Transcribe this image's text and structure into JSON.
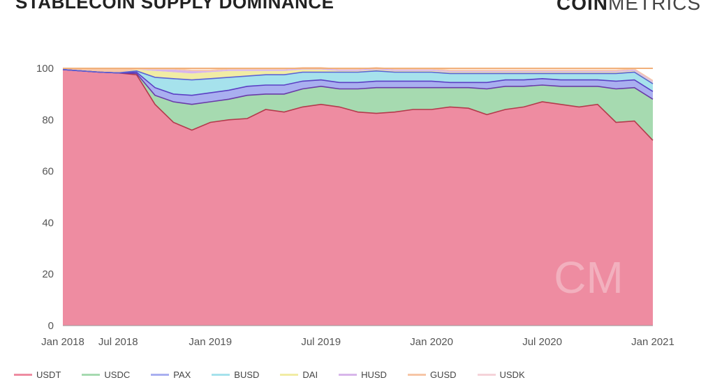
{
  "title": "STABLECOIN SUPPLY DOMINANCE",
  "logo": {
    "bold": "COIN",
    "light": "METRICS"
  },
  "watermark": "CM",
  "chart_data": {
    "type": "area",
    "stacked": true,
    "ylim": [
      0,
      100
    ],
    "yticks": [
      0,
      20,
      40,
      60,
      80,
      100
    ],
    "xticks": [
      "Jan 2018",
      "Jul 2018",
      "Jan 2019",
      "Jul 2019",
      "Jan 2020",
      "Jul 2020",
      "Jan 2021"
    ],
    "x": [
      "Jan 2018",
      "Mar 2018",
      "May 2018",
      "Jul 2018",
      "Sep 2018",
      "Oct 2018",
      "Nov 2018",
      "Dec 2018",
      "Jan 2019",
      "Feb 2019",
      "Mar 2019",
      "Apr 2019",
      "May 2019",
      "Jun 2019",
      "Jul 2019",
      "Aug 2019",
      "Sep 2019",
      "Oct 2019",
      "Nov 2019",
      "Dec 2019",
      "Jan 2020",
      "Feb 2020",
      "Mar 2020",
      "Apr 2020",
      "May 2020",
      "Jun 2020",
      "Jul 2020",
      "Aug 2020",
      "Sep 2020",
      "Oct 2020",
      "Nov 2020",
      "Dec 2020",
      "Jan 2021"
    ],
    "series": [
      {
        "name": "USDT",
        "color": "#ee8ca1",
        "values": [
          99.5,
          99.0,
          98.5,
          98.2,
          97.5,
          86,
          79,
          76,
          79,
          80,
          80.5,
          84,
          83,
          85,
          86,
          85,
          83,
          82.5,
          83,
          84,
          84,
          85,
          84.5,
          82,
          84,
          85,
          87,
          86,
          85,
          86,
          79,
          79.5,
          72
        ]
      },
      {
        "name": "USDC",
        "color": "#a6dab0",
        "values": [
          0,
          0,
          0,
          0,
          0.5,
          3.5,
          8,
          10,
          8,
          8,
          9,
          6,
          7,
          7,
          7,
          7,
          9,
          10,
          9.5,
          8.5,
          8.5,
          7.5,
          8,
          10,
          9,
          8,
          6.5,
          7,
          8,
          7,
          13,
          13,
          16
        ]
      },
      {
        "name": "PAX",
        "color": "#a9aff0",
        "values": [
          0,
          0,
          0,
          0,
          0.5,
          3,
          3,
          3.5,
          3.5,
          3.5,
          3.5,
          3.5,
          3.5,
          3,
          2.5,
          2.5,
          2.5,
          2.5,
          2.5,
          2.5,
          2.5,
          2,
          2,
          2.5,
          2.5,
          2.5,
          2.5,
          2.5,
          2.5,
          2.5,
          3,
          3,
          3
        ]
      },
      {
        "name": "BUSD",
        "color": "#a6e2ec",
        "values": [
          0,
          0,
          0,
          0,
          0.5,
          4,
          6,
          6,
          5.5,
          5,
          4,
          4,
          4,
          3.5,
          3,
          4,
          4,
          4,
          3.5,
          3.5,
          3.5,
          3.5,
          3.5,
          3.5,
          2.5,
          2.5,
          2,
          2.5,
          2.5,
          2.5,
          3,
          3,
          3
        ]
      },
      {
        "name": "DAI",
        "color": "#f1eca4",
        "values": [
          0,
          0,
          0,
          0,
          0.5,
          2.5,
          2.5,
          2.5,
          2.5,
          2.5,
          2,
          1.5,
          1.5,
          1,
          1,
          0.5,
          0.5,
          0.5,
          0.5,
          0.5,
          0.5,
          0.5,
          0.5,
          0.5,
          0.5,
          0.5,
          0.5,
          0.5,
          0.5,
          0.5,
          0.5,
          0.5,
          0.5
        ]
      },
      {
        "name": "HUSD",
        "color": "#d8b6ea",
        "values": [
          0,
          0,
          0,
          0,
          0,
          0.5,
          1,
          1,
          0.5,
          0.5,
          0.5,
          0.5,
          0.5,
          0.5,
          0.5,
          0.5,
          0.5,
          0.5,
          0.5,
          0.5,
          0.5,
          0.5,
          0.5,
          0.5,
          0.5,
          0.5,
          0.5,
          0.5,
          0.5,
          0.5,
          0.5,
          0.5,
          0.5
        ]
      },
      {
        "name": "GUSD",
        "color": "#f7c6a6",
        "values": [
          0.5,
          1,
          1.5,
          1.8,
          0.5,
          0.5,
          0.5,
          0.5,
          0.5,
          0.5,
          0.5,
          0.5,
          0.5,
          0.5,
          0.5,
          0.5,
          0.5,
          0.5,
          0.5,
          0.5,
          0.5,
          0.5,
          0.5,
          0.5,
          0.5,
          0.5,
          0.5,
          0.5,
          0.5,
          0.5,
          0.5,
          0.5,
          0.5
        ]
      },
      {
        "name": "USDK",
        "color": "#f5d3d9",
        "values": [
          0,
          0,
          0,
          0,
          0,
          0,
          0,
          0,
          0,
          0,
          0,
          0,
          0,
          0,
          0,
          0,
          0,
          0,
          0,
          0,
          0,
          0,
          0,
          0,
          0,
          0,
          0,
          0,
          0,
          0,
          0,
          0,
          0
        ]
      }
    ]
  }
}
